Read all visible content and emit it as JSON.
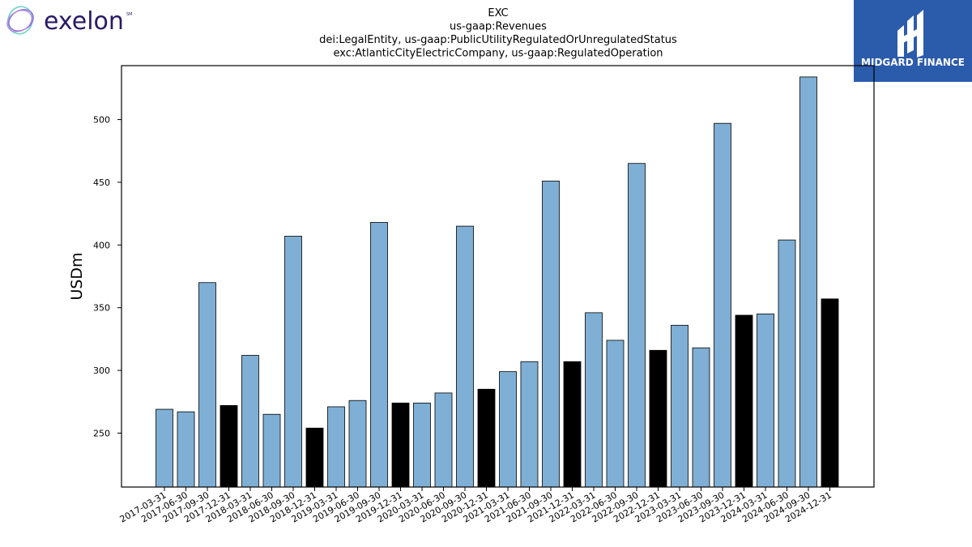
{
  "logos": {
    "left_brand": "exelon",
    "left_brand_mark": "SM",
    "right_brand": "MIDGARD FINANCE",
    "right_brand_color": "#2b5bab",
    "left_brand_color": "#2a1a66"
  },
  "chart_data": {
    "type": "bar",
    "title_lines": [
      "EXC",
      "us-gaap:Revenues",
      "dei:LegalEntity, us-gaap:PublicUtilityRegulatedOrUnregulatedStatus",
      "exc:AtlanticCityElectricCompany, us-gaap:RegulatedOperation"
    ],
    "ylabel": "USDm",
    "xlabel": "",
    "ylim": [
      207,
      543
    ],
    "yticks": [
      250,
      300,
      350,
      400,
      450,
      500
    ],
    "grid": false,
    "colors": {
      "quarter": "#7fafd4",
      "year_end": "#000000",
      "edge": "#000000"
    },
    "categories": [
      "2017-03-31",
      "2017-06-30",
      "2017-09-30",
      "2017-12-31",
      "2018-03-31",
      "2018-06-30",
      "2018-09-30",
      "2018-12-31",
      "2019-03-31",
      "2019-06-30",
      "2019-09-30",
      "2019-12-31",
      "2020-03-31",
      "2020-06-30",
      "2020-09-30",
      "2020-12-31",
      "2021-03-31",
      "2021-06-30",
      "2021-09-30",
      "2021-12-31",
      "2022-03-31",
      "2022-06-30",
      "2022-09-30",
      "2022-12-31",
      "2023-03-31",
      "2023-06-30",
      "2023-09-30",
      "2023-12-31",
      "2024-03-31",
      "2024-06-30",
      "2024-09-30",
      "2024-12-31"
    ],
    "values": [
      269,
      267,
      370,
      272,
      312,
      265,
      407,
      254,
      271,
      276,
      418,
      274,
      274,
      282,
      415,
      285,
      299,
      307,
      451,
      307,
      346,
      324,
      465,
      316,
      336,
      318,
      497,
      344,
      345,
      404,
      534,
      357
    ]
  }
}
